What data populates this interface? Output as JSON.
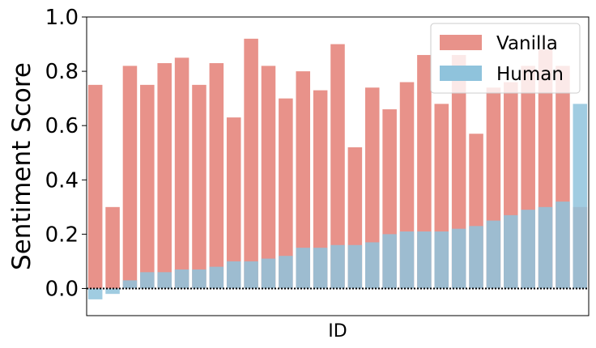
{
  "chart_data": {
    "type": "bar",
    "layout": "overlaid",
    "xlabel": "ID",
    "ylabel": "Sentiment Score",
    "ylim": [
      -0.1,
      1.0
    ],
    "yticks": [
      "0.0",
      "0.2",
      "0.4",
      "0.6",
      "0.8",
      "1.0"
    ],
    "ytick_values": [
      0.0,
      0.2,
      0.4,
      0.6,
      0.8,
      1.0
    ],
    "reference_line": {
      "y": 0.0,
      "style": "dotted",
      "color": "#000000"
    },
    "legend_position": "top-right",
    "series": [
      {
        "name": "Vanilla",
        "color": "#e8928a",
        "values": [
          0.75,
          0.3,
          0.82,
          0.75,
          0.83,
          0.85,
          0.75,
          0.83,
          0.63,
          0.92,
          0.82,
          0.7,
          0.8,
          0.73,
          0.9,
          0.52,
          0.74,
          0.66,
          0.76,
          0.86,
          0.68,
          0.86,
          0.57,
          0.74,
          0.76,
          0.82,
          0.88,
          0.82,
          0.3
        ]
      },
      {
        "name": "Human",
        "color": "#8fc3dc",
        "values": [
          -0.04,
          -0.02,
          0.03,
          0.06,
          0.06,
          0.07,
          0.07,
          0.08,
          0.1,
          0.1,
          0.11,
          0.12,
          0.15,
          0.15,
          0.16,
          0.16,
          0.17,
          0.2,
          0.21,
          0.21,
          0.21,
          0.22,
          0.23,
          0.25,
          0.27,
          0.29,
          0.3,
          0.32,
          0.68
        ]
      }
    ]
  }
}
